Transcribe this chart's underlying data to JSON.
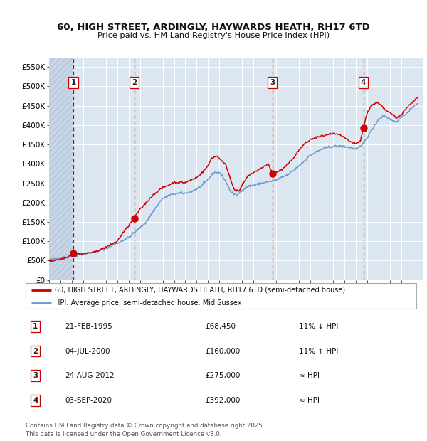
{
  "title_line1": "60, HIGH STREET, ARDINGLY, HAYWARDS HEATH, RH17 6TD",
  "title_line2": "Price paid vs. HM Land Registry's House Price Index (HPI)",
  "sale_color": "#cc0000",
  "hpi_color": "#6699cc",
  "background_color": "#dce6f1",
  "grid_color": "#ffffff",
  "vline_color": "#cc0000",
  "sale_years": [
    1995.13,
    2000.51,
    2012.65,
    2020.67
  ],
  "sale_prices": [
    68450,
    160000,
    275000,
    392000
  ],
  "sale_labels": [
    "1",
    "2",
    "3",
    "4"
  ],
  "legend_entries": [
    "60, HIGH STREET, ARDINGLY, HAYWARDS HEATH, RH17 6TD (semi-detached house)",
    "HPI: Average price, semi-detached house, Mid Sussex"
  ],
  "table_rows": [
    {
      "num": "1",
      "date": "21-FEB-1995",
      "price": "£68,450",
      "rel": "11% ↓ HPI"
    },
    {
      "num": "2",
      "date": "04-JUL-2000",
      "price": "£160,000",
      "rel": "11% ↑ HPI"
    },
    {
      "num": "3",
      "date": "24-AUG-2012",
      "price": "£275,000",
      "rel": "≈ HPI"
    },
    {
      "num": "4",
      "date": "03-SEP-2020",
      "price": "£392,000",
      "rel": "≈ HPI"
    }
  ],
  "footnote": "Contains HM Land Registry data © Crown copyright and database right 2025.\nThis data is licensed under the Open Government Licence v3.0.",
  "ylim": [
    0,
    575000
  ],
  "yticks": [
    0,
    50000,
    100000,
    150000,
    200000,
    250000,
    300000,
    350000,
    400000,
    450000,
    500000,
    550000
  ],
  "ytick_labels": [
    "£0",
    "£50K",
    "£100K",
    "£150K",
    "£200K",
    "£250K",
    "£300K",
    "£350K",
    "£400K",
    "£450K",
    "£500K",
    "£550K"
  ],
  "xlim": [
    1993.0,
    2025.9
  ],
  "hpi_anchors": [
    [
      1993.0,
      52000
    ],
    [
      1994.0,
      57000
    ],
    [
      1995.2,
      63000
    ],
    [
      1996.0,
      67000
    ],
    [
      1997.0,
      72000
    ],
    [
      1998.0,
      82000
    ],
    [
      1999.0,
      95000
    ],
    [
      2000.0,
      110000
    ],
    [
      2001.0,
      135000
    ],
    [
      2001.5,
      148000
    ],
    [
      2002.0,
      170000
    ],
    [
      2002.5,
      192000
    ],
    [
      2003.0,
      210000
    ],
    [
      2003.5,
      218000
    ],
    [
      2004.0,
      222000
    ],
    [
      2004.5,
      224000
    ],
    [
      2005.0,
      224000
    ],
    [
      2005.5,
      228000
    ],
    [
      2006.0,
      235000
    ],
    [
      2006.5,
      245000
    ],
    [
      2007.0,
      260000
    ],
    [
      2007.5,
      278000
    ],
    [
      2008.0,
      278000
    ],
    [
      2008.5,
      258000
    ],
    [
      2009.0,
      228000
    ],
    [
      2009.5,
      218000
    ],
    [
      2010.0,
      232000
    ],
    [
      2010.5,
      242000
    ],
    [
      2011.0,
      245000
    ],
    [
      2011.5,
      248000
    ],
    [
      2012.0,
      252000
    ],
    [
      2012.5,
      255000
    ],
    [
      2013.0,
      258000
    ],
    [
      2013.5,
      265000
    ],
    [
      2014.0,
      272000
    ],
    [
      2014.5,
      282000
    ],
    [
      2015.0,
      295000
    ],
    [
      2015.5,
      308000
    ],
    [
      2016.0,
      322000
    ],
    [
      2016.5,
      330000
    ],
    [
      2017.0,
      338000
    ],
    [
      2017.5,
      342000
    ],
    [
      2018.0,
      345000
    ],
    [
      2018.5,
      345000
    ],
    [
      2019.0,
      345000
    ],
    [
      2019.5,
      342000
    ],
    [
      2020.0,
      338000
    ],
    [
      2020.5,
      345000
    ],
    [
      2021.0,
      368000
    ],
    [
      2021.5,
      392000
    ],
    [
      2022.0,
      415000
    ],
    [
      2022.5,
      425000
    ],
    [
      2023.0,
      415000
    ],
    [
      2023.5,
      408000
    ],
    [
      2024.0,
      418000
    ],
    [
      2024.5,
      432000
    ],
    [
      2025.0,
      445000
    ],
    [
      2025.5,
      458000
    ]
  ],
  "prop_anchors": [
    [
      1993.0,
      48000
    ],
    [
      1994.0,
      54000
    ],
    [
      1994.5,
      58000
    ],
    [
      1995.13,
      68450
    ],
    [
      1996.0,
      68000
    ],
    [
      1997.0,
      72000
    ],
    [
      1998.0,
      85000
    ],
    [
      1999.0,
      100000
    ],
    [
      1999.5,
      122000
    ],
    [
      2000.0,
      140000
    ],
    [
      2000.5,
      162000
    ],
    [
      2001.0,
      182000
    ],
    [
      2001.5,
      198000
    ],
    [
      2002.0,
      215000
    ],
    [
      2002.5,
      228000
    ],
    [
      2003.0,
      238000
    ],
    [
      2003.5,
      245000
    ],
    [
      2004.0,
      252000
    ],
    [
      2004.5,
      252000
    ],
    [
      2005.0,
      252000
    ],
    [
      2005.5,
      258000
    ],
    [
      2006.0,
      265000
    ],
    [
      2006.5,
      278000
    ],
    [
      2007.0,
      295000
    ],
    [
      2007.3,
      315000
    ],
    [
      2007.8,
      320000
    ],
    [
      2008.2,
      308000
    ],
    [
      2008.6,
      295000
    ],
    [
      2009.0,
      258000
    ],
    [
      2009.3,
      235000
    ],
    [
      2009.7,
      228000
    ],
    [
      2010.0,
      245000
    ],
    [
      2010.5,
      268000
    ],
    [
      2011.0,
      278000
    ],
    [
      2011.5,
      285000
    ],
    [
      2012.0,
      295000
    ],
    [
      2012.3,
      300000
    ],
    [
      2012.65,
      275000
    ],
    [
      2013.0,
      278000
    ],
    [
      2013.5,
      285000
    ],
    [
      2014.0,
      298000
    ],
    [
      2014.5,
      315000
    ],
    [
      2015.0,
      335000
    ],
    [
      2015.5,
      352000
    ],
    [
      2016.0,
      362000
    ],
    [
      2016.5,
      368000
    ],
    [
      2017.0,
      372000
    ],
    [
      2017.5,
      375000
    ],
    [
      2018.0,
      378000
    ],
    [
      2018.5,
      375000
    ],
    [
      2019.0,
      368000
    ],
    [
      2019.3,
      362000
    ],
    [
      2019.6,
      355000
    ],
    [
      2020.0,
      352000
    ],
    [
      2020.4,
      358000
    ],
    [
      2020.67,
      392000
    ],
    [
      2021.0,
      430000
    ],
    [
      2021.3,
      448000
    ],
    [
      2021.6,
      455000
    ],
    [
      2022.0,
      458000
    ],
    [
      2022.3,
      450000
    ],
    [
      2022.6,
      438000
    ],
    [
      2023.0,
      432000
    ],
    [
      2023.3,
      425000
    ],
    [
      2023.6,
      418000
    ],
    [
      2024.0,
      428000
    ],
    [
      2024.5,
      445000
    ],
    [
      2025.0,
      460000
    ],
    [
      2025.5,
      472000
    ]
  ]
}
